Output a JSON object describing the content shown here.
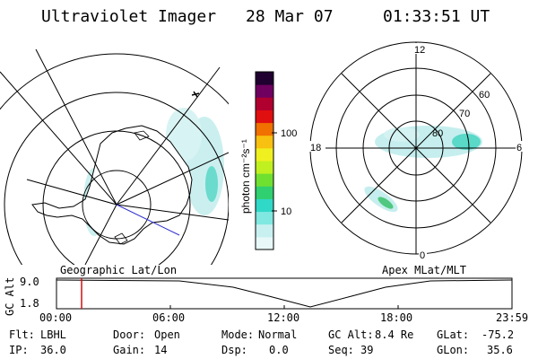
{
  "header": {
    "title": "Ultraviolet Imager",
    "date": "28 Mar 07",
    "time": "01:33:51 UT"
  },
  "left_panel": {
    "caption": "Geographic Lat/Lon"
  },
  "right_panel": {
    "caption": "Apex MLat/MLT",
    "mlt_labels": {
      "top": "12",
      "left": "18",
      "right": "6",
      "bottom": "0"
    },
    "lat_labels": [
      "80",
      "70",
      "60"
    ]
  },
  "colorbar": {
    "unit_label": "photon cm⁻²s⁻¹",
    "ticks": [
      "100",
      "10"
    ],
    "colors": [
      "#e8f8f8",
      "#c8f0f0",
      "#80e8e0",
      "#30d8c8",
      "#30d070",
      "#70e030",
      "#c0f020",
      "#f0f020",
      "#f8c010",
      "#f07000",
      "#e01010",
      "#b00030",
      "#700060",
      "#200030"
    ]
  },
  "timeline": {
    "ylabel": "GC Alt",
    "yticks": [
      "9.0",
      "1.8"
    ],
    "xticks": [
      "00:00",
      "06:00",
      "12:00",
      "18:00",
      "23:59"
    ],
    "marker_color": "#d01010"
  },
  "info": {
    "flt_label": "Flt:",
    "flt_value": "LBHL",
    "ip_label": "IP:",
    "ip_value": "36.0",
    "door_label": "Door:",
    "door_value": "Open",
    "gain_label": "Gain:",
    "gain_value": "14",
    "mode_label": "Mode:",
    "mode_value": "Normal",
    "dsp_label": "Dsp:",
    "dsp_value": "0.0",
    "gcalt_label": "GC Alt:",
    "gcalt_value": "8.4 Re",
    "seq_label": "Seq:",
    "seq_value": "39",
    "glat_label": "GLat:",
    "glat_value": "-75.2",
    "glon_label": "GLon:",
    "glon_value": "35.6"
  }
}
